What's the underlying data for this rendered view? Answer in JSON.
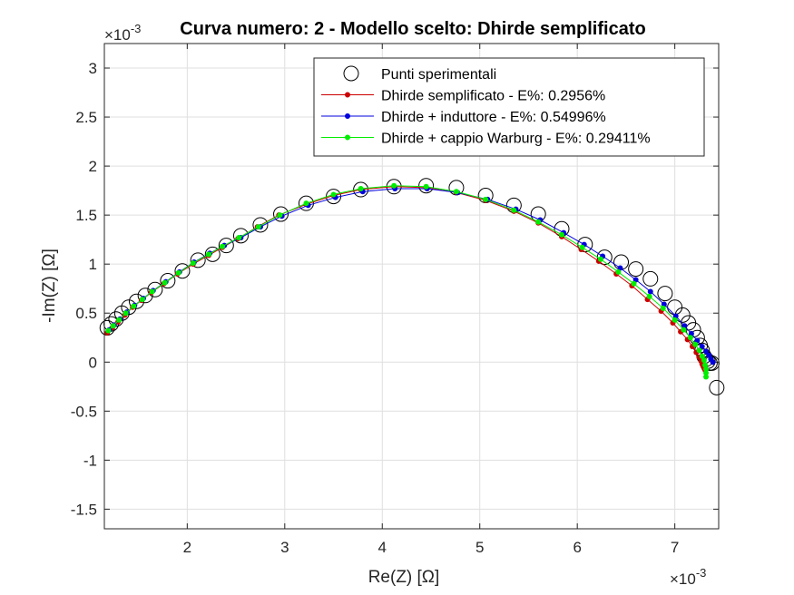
{
  "chart_data": {
    "type": "scatter",
    "title": "Curva numero: 2 - Modello scelto: Dhirde semplificato",
    "xlabel": "Re(Z) [Ω]",
    "ylabel": "-Im(Z) [Ω]",
    "x_exponent": "×10",
    "x_exponent_power": "-3",
    "y_exponent": "×10",
    "y_exponent_power": "-3",
    "xlim": [
      1.15,
      7.45
    ],
    "ylim": [
      -1.7,
      3.25
    ],
    "x_ticks": [
      2,
      3,
      4,
      5,
      6,
      7
    ],
    "y_ticks": [
      -1.5,
      -1,
      -0.5,
      0,
      0.5,
      1,
      1.5,
      2,
      2.5,
      3
    ],
    "grid": true,
    "legend_position": "top-right",
    "series": [
      {
        "name": "Punti sperimentali",
        "color": "#000000",
        "marker": "open-circle",
        "x": [
          1.18,
          1.22,
          1.27,
          1.33,
          1.4,
          1.48,
          1.57,
          1.67,
          1.8,
          1.95,
          2.11,
          2.26,
          2.4,
          2.55,
          2.75,
          2.96,
          3.22,
          3.5,
          3.78,
          4.12,
          4.45,
          4.76,
          5.06,
          5.35,
          5.6,
          5.84,
          6.08,
          6.28,
          6.45,
          6.6,
          6.75,
          6.9,
          7.0,
          7.08,
          7.14,
          7.19,
          7.23,
          7.26,
          7.28,
          7.3,
          7.32,
          7.34,
          7.36,
          7.38,
          7.43
        ],
        "y": [
          0.35,
          0.39,
          0.44,
          0.5,
          0.56,
          0.62,
          0.68,
          0.74,
          0.83,
          0.93,
          1.04,
          1.1,
          1.19,
          1.29,
          1.4,
          1.51,
          1.62,
          1.69,
          1.76,
          1.79,
          1.8,
          1.78,
          1.7,
          1.6,
          1.51,
          1.36,
          1.2,
          1.07,
          1.02,
          0.95,
          0.85,
          0.7,
          0.56,
          0.48,
          0.4,
          0.33,
          0.25,
          0.17,
          0.12,
          0.06,
          0.03,
          0.01,
          -0.01,
          -0.01,
          -0.26
        ]
      },
      {
        "name": "Dhirde semplificato - E%: 0.2956%",
        "color": "#cc0000",
        "marker": "dot",
        "x": [
          1.18,
          1.23,
          1.29,
          1.36,
          1.44,
          1.53,
          1.63,
          1.76,
          1.9,
          2.06,
          2.22,
          2.36,
          2.52,
          2.72,
          2.94,
          3.22,
          3.5,
          3.78,
          4.12,
          4.45,
          4.76,
          5.06,
          5.35,
          5.6,
          5.84,
          6.04,
          6.22,
          6.4,
          6.56,
          6.72,
          6.86,
          6.98,
          7.06,
          7.13,
          7.18,
          7.22,
          7.25,
          7.27,
          7.28,
          7.29,
          7.3,
          7.31
        ],
        "y": [
          0.3,
          0.35,
          0.41,
          0.48,
          0.56,
          0.63,
          0.71,
          0.8,
          0.9,
          1.0,
          1.09,
          1.17,
          1.26,
          1.38,
          1.5,
          1.61,
          1.7,
          1.76,
          1.79,
          1.78,
          1.73,
          1.65,
          1.54,
          1.42,
          1.28,
          1.15,
          1.03,
          0.9,
          0.78,
          0.64,
          0.52,
          0.4,
          0.31,
          0.23,
          0.16,
          0.1,
          0.05,
          0.01,
          -0.02,
          -0.04,
          -0.06,
          -0.08
        ]
      },
      {
        "name": "Dhirde + induttore - E%: 0.54996%",
        "color": "#0000dd",
        "marker": "dot",
        "x": [
          1.2,
          1.25,
          1.31,
          1.38,
          1.46,
          1.55,
          1.65,
          1.78,
          1.92,
          2.07,
          2.23,
          2.38,
          2.55,
          2.75,
          2.97,
          3.24,
          3.52,
          3.8,
          4.13,
          4.46,
          4.77,
          5.08,
          5.37,
          5.62,
          5.86,
          6.07,
          6.26,
          6.44,
          6.6,
          6.75,
          6.89,
          7.01,
          7.1,
          7.17,
          7.23,
          7.28,
          7.32,
          7.35,
          7.37,
          7.39
        ],
        "y": [
          0.33,
          0.38,
          0.44,
          0.51,
          0.58,
          0.65,
          0.73,
          0.82,
          0.92,
          1.02,
          1.11,
          1.19,
          1.27,
          1.38,
          1.49,
          1.6,
          1.68,
          1.74,
          1.77,
          1.77,
          1.73,
          1.66,
          1.56,
          1.45,
          1.32,
          1.2,
          1.08,
          0.96,
          0.84,
          0.72,
          0.59,
          0.47,
          0.37,
          0.29,
          0.22,
          0.16,
          0.11,
          0.07,
          0.03,
          0.0
        ]
      },
      {
        "name": "Dhirde + cappio Warburg - E%: 0.29411%",
        "color": "#00ee00",
        "marker": "dot",
        "x": [
          1.19,
          1.24,
          1.3,
          1.37,
          1.45,
          1.54,
          1.64,
          1.77,
          1.91,
          2.06,
          2.22,
          2.36,
          2.53,
          2.73,
          2.95,
          3.22,
          3.5,
          3.78,
          4.12,
          4.45,
          4.76,
          5.06,
          5.35,
          5.6,
          5.84,
          6.05,
          6.24,
          6.42,
          6.58,
          6.74,
          6.88,
          7.0,
          7.09,
          7.16,
          7.21,
          7.25,
          7.28,
          7.3,
          7.31,
          7.32,
          7.32,
          7.32
        ],
        "y": [
          0.32,
          0.37,
          0.43,
          0.5,
          0.57,
          0.64,
          0.72,
          0.81,
          0.91,
          1.01,
          1.1,
          1.18,
          1.27,
          1.38,
          1.5,
          1.62,
          1.71,
          1.77,
          1.8,
          1.79,
          1.74,
          1.66,
          1.55,
          1.43,
          1.3,
          1.17,
          1.05,
          0.92,
          0.8,
          0.67,
          0.55,
          0.43,
          0.33,
          0.25,
          0.18,
          0.12,
          0.06,
          0.02,
          -0.03,
          -0.07,
          -0.11,
          -0.15
        ]
      }
    ]
  }
}
